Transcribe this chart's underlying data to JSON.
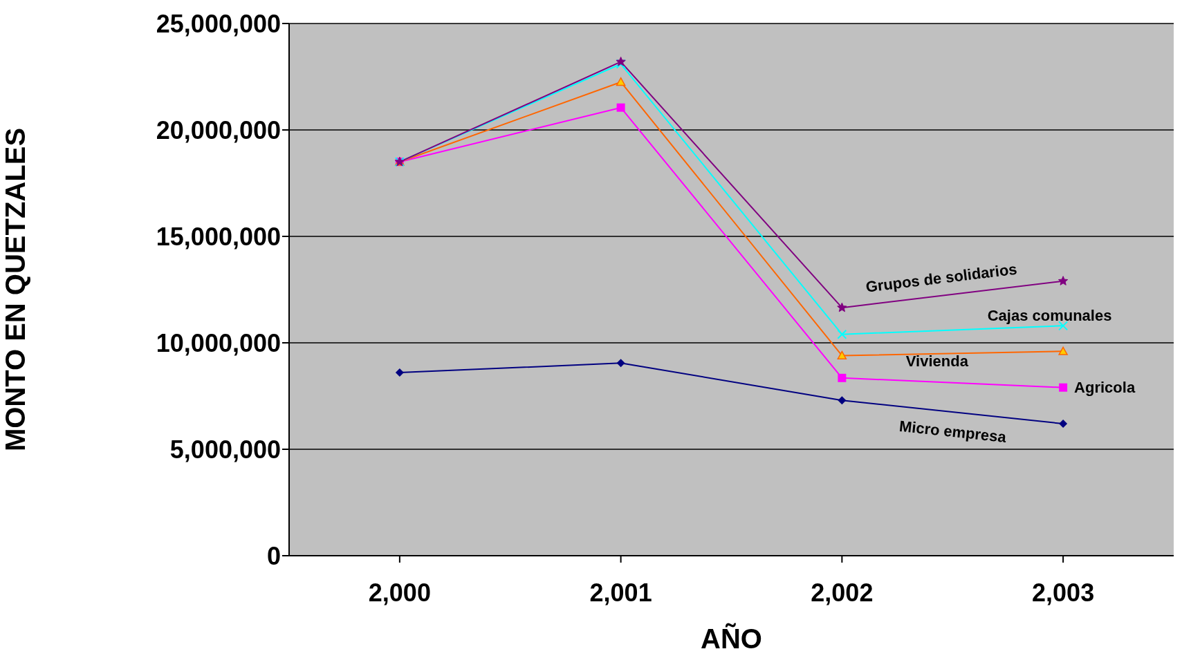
{
  "chart_data": {
    "type": "line",
    "xlabel": "AÑO",
    "ylabel": "MONTO  EN  QUETZALES",
    "categories": [
      "2,000",
      "2,001",
      "2,002",
      "2,003"
    ],
    "series": [
      {
        "name": "Micro empresa",
        "color": "#000080",
        "marker": "diamond",
        "values": [
          8600000,
          9050000,
          7300000,
          6200000
        ]
      },
      {
        "name": "Agricola",
        "color": "#ff00ff",
        "marker": "square",
        "values": [
          18500000,
          21050000,
          8350000,
          7900000
        ]
      },
      {
        "name": "Vivienda",
        "color": "#ff6600",
        "marker": "triangle",
        "values": [
          18500000,
          22250000,
          9400000,
          9600000
        ]
      },
      {
        "name": "Cajas comunales",
        "color": "#00ffff",
        "marker": "cross",
        "values": [
          18500000,
          23100000,
          10400000,
          10800000
        ]
      },
      {
        "name": "Grupos de solidarios",
        "color": "#800080",
        "marker": "star",
        "values": [
          18500000,
          23200000,
          11650000,
          12900000
        ]
      }
    ],
    "ylim": [
      0,
      25000000
    ],
    "yticks": [
      {
        "value": 0,
        "label": "0"
      },
      {
        "value": 5000000,
        "label": "5,000,000"
      },
      {
        "value": 10000000,
        "label": "10,000,000"
      },
      {
        "value": 15000000,
        "label": "15,000,000"
      },
      {
        "value": 20000000,
        "label": "20,000,000"
      },
      {
        "value": 25000000,
        "label": "25,000,000"
      }
    ],
    "grid": "y",
    "legend": false
  }
}
